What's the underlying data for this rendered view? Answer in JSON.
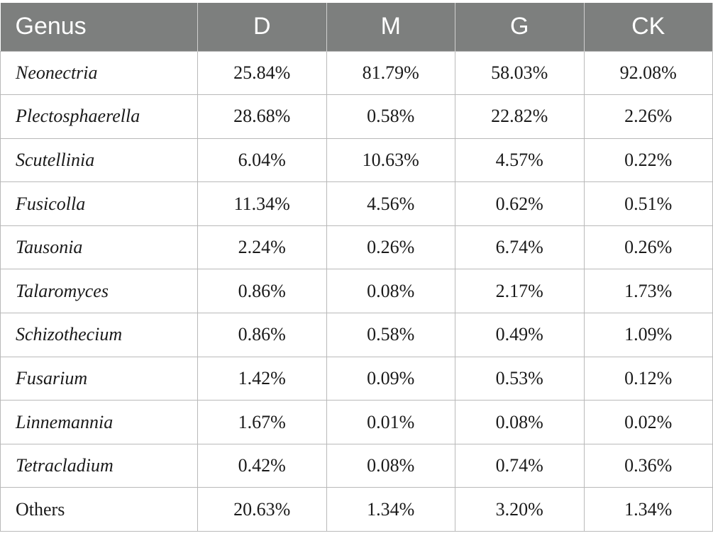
{
  "table": {
    "headers": [
      "Genus",
      "D",
      "M",
      "G",
      "CK"
    ],
    "rows": [
      {
        "genus": "Neonectria",
        "italic": true,
        "values": [
          "25.84%",
          "81.79%",
          "58.03%",
          "92.08%"
        ]
      },
      {
        "genus": "Plectosphaerella",
        "italic": true,
        "values": [
          "28.68%",
          "0.58%",
          "22.82%",
          "2.26%"
        ]
      },
      {
        "genus": "Scutellinia",
        "italic": true,
        "values": [
          "6.04%",
          "10.63%",
          "4.57%",
          "0.22%"
        ]
      },
      {
        "genus": "Fusicolla",
        "italic": true,
        "values": [
          "11.34%",
          "4.56%",
          "0.62%",
          "0.51%"
        ]
      },
      {
        "genus": "Tausonia",
        "italic": true,
        "values": [
          "2.24%",
          "0.26%",
          "6.74%",
          "0.26%"
        ]
      },
      {
        "genus": "Talaromyces",
        "italic": true,
        "values": [
          "0.86%",
          "0.08%",
          "2.17%",
          "1.73%"
        ]
      },
      {
        "genus": "Schizothecium",
        "italic": true,
        "values": [
          "0.86%",
          "0.58%",
          "0.49%",
          "1.09%"
        ]
      },
      {
        "genus": "Fusarium",
        "italic": true,
        "values": [
          "1.42%",
          "0.09%",
          "0.53%",
          "0.12%"
        ]
      },
      {
        "genus": "Linnemannia",
        "italic": true,
        "values": [
          "1.67%",
          "0.01%",
          "0.08%",
          "0.02%"
        ]
      },
      {
        "genus": "Tetracladium",
        "italic": true,
        "values": [
          "0.42%",
          "0.08%",
          "0.74%",
          "0.36%"
        ]
      },
      {
        "genus": "Others",
        "italic": false,
        "values": [
          "20.63%",
          "1.34%",
          "3.20%",
          "1.34%"
        ]
      }
    ],
    "colors": {
      "header_bg": "#7d7f7e",
      "header_text": "#ffffff",
      "border": "#b9b9b9"
    }
  }
}
